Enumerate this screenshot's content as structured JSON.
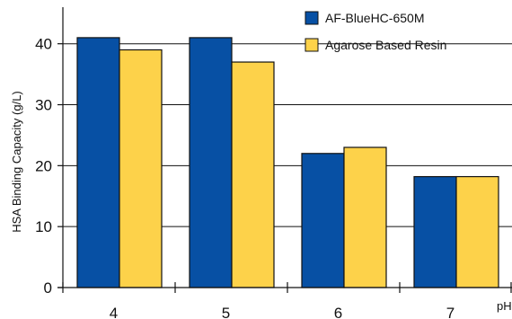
{
  "chart_data": {
    "type": "bar",
    "categories": [
      "4",
      "5",
      "6",
      "7"
    ],
    "series": [
      {
        "name": "AF-BlueHC-650M",
        "values": [
          41,
          41,
          22,
          18.2
        ],
        "color": "#0750a4"
      },
      {
        "name": "Agarose Based Resin",
        "values": [
          39,
          37,
          23,
          18.2
        ],
        "color": "#fdd24a"
      }
    ],
    "xlabel": "pH",
    "ylabel": "HSA Binding Capacity (g/L)",
    "ylim": [
      0,
      46
    ],
    "yticks": [
      0,
      10,
      20,
      30,
      40
    ],
    "grid": "horizontal",
    "legend": "top-right",
    "outline_color": "#111111"
  }
}
